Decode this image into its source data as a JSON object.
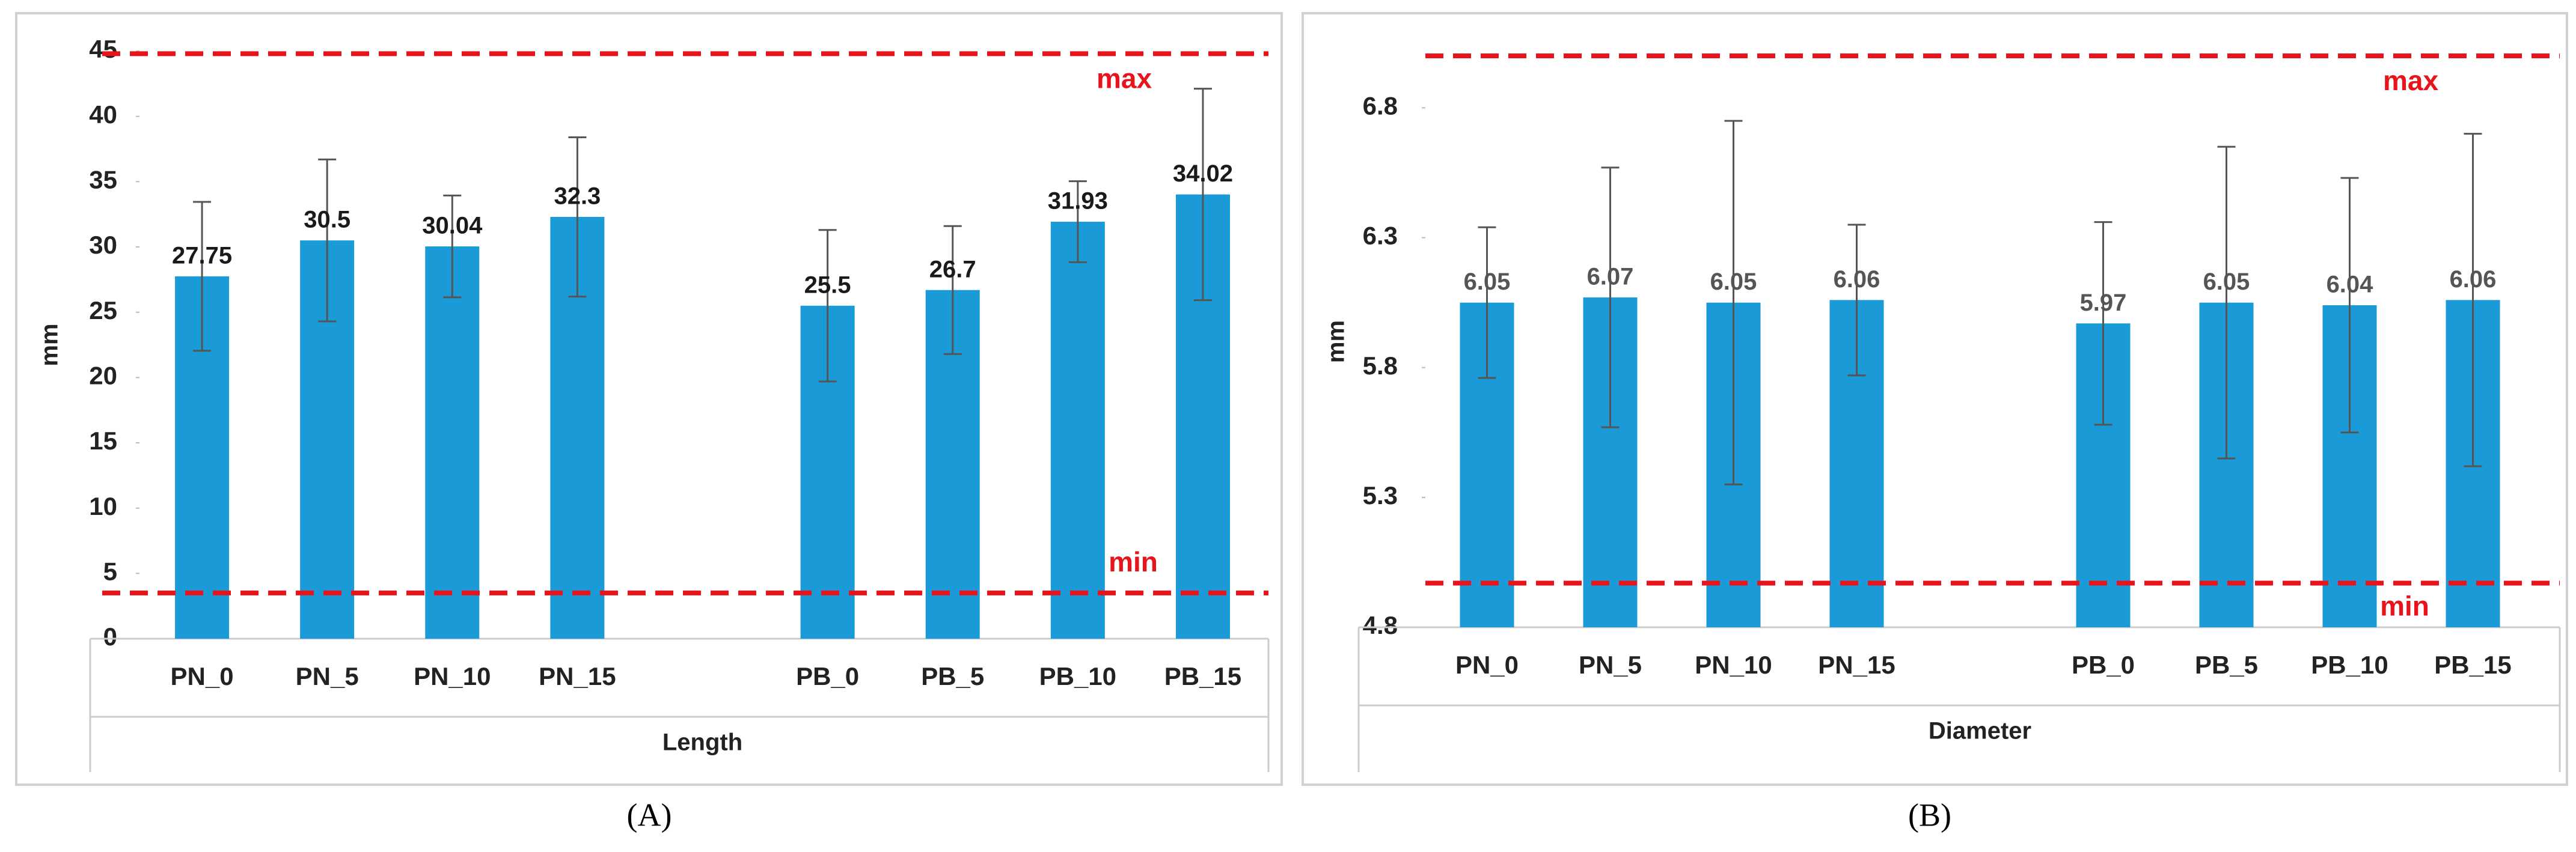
{
  "chart_data": [
    {
      "type": "bar",
      "panel_label": "(A)",
      "xlabel": "Length",
      "ylabel": "mm",
      "categories": [
        "PN_0",
        "PN_5",
        "PN_10",
        "PN_15",
        null,
        "PB_0",
        "PB_5",
        "PB_10",
        "PB_15"
      ],
      "values": [
        27.75,
        30.5,
        30.04,
        32.3,
        null,
        25.5,
        26.7,
        31.93,
        34.02
      ],
      "errors": [
        5.7,
        6.2,
        3.9,
        6.1,
        null,
        5.8,
        4.9,
        3.1,
        8.1
      ],
      "color": "#1a9ad6",
      "ylim": [
        0,
        45
      ],
      "yticks": [
        0,
        5,
        10,
        15,
        20,
        25,
        30,
        35,
        40,
        45
      ],
      "reference_lines": [
        {
          "label": "max",
          "value": 44.8,
          "color": "#e8141b"
        },
        {
          "label": "min",
          "value": 3.5,
          "color": "#e8141b"
        }
      ]
    },
    {
      "type": "bar",
      "panel_label": "(B)",
      "xlabel": "Diameter",
      "ylabel": "mm",
      "categories": [
        "PN_0",
        "PN_5",
        "PN_10",
        "PN_15",
        null,
        "PB_0",
        "PB_5",
        "PB_10",
        "PB_15"
      ],
      "values": [
        6.05,
        6.07,
        6.05,
        6.06,
        null,
        5.97,
        6.05,
        6.04,
        6.06
      ],
      "errors": [
        0.29,
        0.5,
        0.7,
        0.29,
        null,
        0.39,
        0.6,
        0.49,
        0.64
      ],
      "color": "#1a9ad6",
      "ylim": [
        4.8,
        7.0
      ],
      "yticks": [
        4.8,
        5.3,
        5.8,
        6.3,
        6.8
      ],
      "reference_lines": [
        {
          "label": "max",
          "value": 7.0,
          "color": "#e8141b"
        },
        {
          "label": "min",
          "value": 4.97,
          "color": "#e8141b"
        }
      ]
    }
  ]
}
